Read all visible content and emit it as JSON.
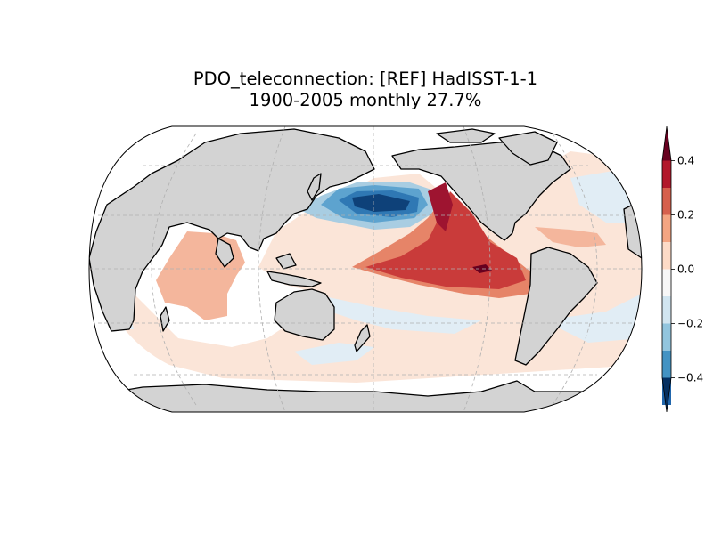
{
  "title": {
    "line1": "PDO_teleconnection: [REF] HadISST-1-1",
    "line2": "1900-2005 monthly 27.7%"
  },
  "colorbar": {
    "ticks": [
      "0.4",
      "0.2",
      "0.0",
      "−0.2",
      "−0.4"
    ],
    "levels": [
      -0.5,
      -0.4,
      -0.3,
      -0.2,
      -0.1,
      0.0,
      0.1,
      0.2,
      0.3,
      0.4,
      0.5
    ],
    "colors": [
      "#053061",
      "#2166ac",
      "#4393c3",
      "#92c5de",
      "#d1e5f0",
      "#f7f7f7",
      "#fddbc7",
      "#f4a582",
      "#d6604d",
      "#b2182b",
      "#67001f"
    ],
    "land_color": "#d3d3d3"
  }
}
